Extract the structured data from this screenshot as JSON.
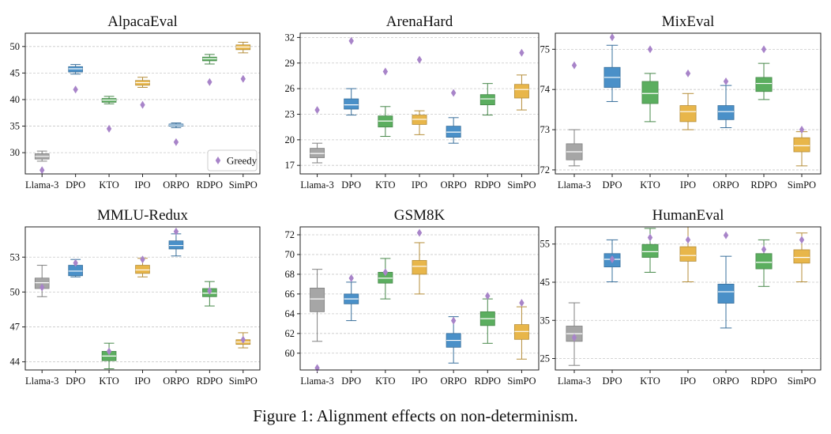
{
  "caption": "Figure 1: Alignment effects on non-determinism.",
  "colors": {
    "Llama-3": "#a6a6a6",
    "DPO": "#4a90c8",
    "KTO": "#5bae5f",
    "IPO": "#e8b64a",
    "ORPO": "#4a90c8",
    "RDPO": "#5bae5f",
    "SimPO": "#e8b64a",
    "greedy": "#a884c9"
  },
  "legend": {
    "label": "Greedy"
  },
  "chart_data": [
    {
      "type": "box",
      "title": "AlpacaEval",
      "categories": [
        "Llama-3",
        "DPO",
        "KTO",
        "IPO",
        "ORPO",
        "RDPO",
        "SimPO"
      ],
      "ylim": [
        26,
        52.5
      ],
      "yticks": [
        "30",
        "35",
        "40",
        "45",
        "50"
      ],
      "boxes": [
        {
          "min": 28.4,
          "q1": 28.8,
          "median": 29.3,
          "q3": 29.8,
          "max": 30.3
        },
        {
          "min": 44.8,
          "q1": 45.2,
          "median": 45.8,
          "q3": 46.2,
          "max": 46.6
        },
        {
          "min": 39.2,
          "q1": 39.5,
          "median": 39.9,
          "q3": 40.2,
          "max": 40.6
        },
        {
          "min": 42.3,
          "q1": 42.7,
          "median": 43.2,
          "q3": 43.6,
          "max": 44.2
        },
        {
          "min": 34.7,
          "q1": 35.0,
          "median": 35.2,
          "q3": 35.4,
          "max": 35.6
        },
        {
          "min": 46.7,
          "q1": 47.3,
          "median": 47.7,
          "q3": 48.0,
          "max": 48.5
        },
        {
          "min": 48.8,
          "q1": 49.4,
          "median": 49.9,
          "q3": 50.3,
          "max": 50.8
        }
      ],
      "greedy": [
        26.7,
        41.9,
        34.5,
        39.0,
        32.0,
        43.3,
        43.9
      ],
      "legend": "bottom-right"
    },
    {
      "type": "box",
      "title": "ArenaHard",
      "categories": [
        "Llama-3",
        "DPO",
        "KTO",
        "IPO",
        "ORPO",
        "RDPO",
        "SimPO"
      ],
      "ylim": [
        16,
        32.5
      ],
      "yticks": [
        "17",
        "20",
        "23",
        "26",
        "29",
        "32"
      ],
      "boxes": [
        {
          "min": 17.3,
          "q1": 17.9,
          "median": 18.4,
          "q3": 19.0,
          "max": 19.6
        },
        {
          "min": 22.9,
          "q1": 23.6,
          "median": 24.1,
          "q3": 24.8,
          "max": 26.0
        },
        {
          "min": 20.4,
          "q1": 21.5,
          "median": 22.2,
          "q3": 22.8,
          "max": 23.9
        },
        {
          "min": 20.6,
          "q1": 21.8,
          "median": 22.4,
          "q3": 22.9,
          "max": 23.4
        },
        {
          "min": 19.6,
          "q1": 20.3,
          "median": 20.9,
          "q3": 21.6,
          "max": 22.6
        },
        {
          "min": 22.9,
          "q1": 24.1,
          "median": 24.8,
          "q3": 25.3,
          "max": 26.6
        },
        {
          "min": 23.5,
          "q1": 24.9,
          "median": 25.9,
          "q3": 26.5,
          "max": 27.6
        }
      ],
      "greedy": [
        23.5,
        31.6,
        28.0,
        29.4,
        25.5,
        null,
        30.2
      ]
    },
    {
      "type": "box",
      "title": "MixEval",
      "categories": [
        "Llama-3",
        "DPO",
        "KTO",
        "IPO",
        "ORPO",
        "RDPO",
        "SimPO"
      ],
      "ylim": [
        71.9,
        75.4
      ],
      "yticks": [
        "72",
        "73",
        "74",
        "75"
      ],
      "boxes": [
        {
          "min": 72.1,
          "q1": 72.25,
          "median": 72.45,
          "q3": 72.65,
          "max": 73.0
        },
        {
          "min": 73.7,
          "q1": 74.05,
          "median": 74.3,
          "q3": 74.55,
          "max": 75.1
        },
        {
          "min": 73.2,
          "q1": 73.65,
          "median": 73.9,
          "q3": 74.2,
          "max": 74.4
        },
        {
          "min": 73.0,
          "q1": 73.2,
          "median": 73.45,
          "q3": 73.6,
          "max": 73.9
        },
        {
          "min": 73.05,
          "q1": 73.25,
          "median": 73.45,
          "q3": 73.6,
          "max": 74.1
        },
        {
          "min": 73.75,
          "q1": 73.95,
          "median": 74.15,
          "q3": 74.3,
          "max": 74.65
        },
        {
          "min": 72.1,
          "q1": 72.45,
          "median": 72.6,
          "q3": 72.8,
          "max": 72.95
        }
      ],
      "greedy": [
        74.6,
        75.3,
        75.0,
        74.4,
        74.2,
        75.0,
        73.0
      ]
    },
    {
      "type": "box",
      "title": "MMLU-Redux",
      "categories": [
        "Llama-3",
        "DPO",
        "KTO",
        "IPO",
        "ORPO",
        "RDPO",
        "SimPO"
      ],
      "ylim": [
        43.3,
        55.6
      ],
      "yticks": [
        "44",
        "47",
        "50",
        "53"
      ],
      "boxes": [
        {
          "min": 49.6,
          "q1": 50.3,
          "median": 50.8,
          "q3": 51.2,
          "max": 52.3
        },
        {
          "min": 51.3,
          "q1": 51.4,
          "median": 51.8,
          "q3": 52.3,
          "max": 52.8
        },
        {
          "min": 43.4,
          "q1": 44.1,
          "median": 44.5,
          "q3": 44.9,
          "max": 45.6
        },
        {
          "min": 51.3,
          "q1": 51.6,
          "median": 51.9,
          "q3": 52.3,
          "max": 52.9
        },
        {
          "min": 53.1,
          "q1": 53.7,
          "median": 54.0,
          "q3": 54.4,
          "max": 55.0
        },
        {
          "min": 48.8,
          "q1": 49.6,
          "median": 49.9,
          "q3": 50.3,
          "max": 50.9
        },
        {
          "min": 45.2,
          "q1": 45.5,
          "median": 45.7,
          "q3": 45.9,
          "max": 46.5
        }
      ],
      "greedy": [
        50.4,
        52.5,
        44.9,
        52.8,
        55.2,
        50.1,
        45.9
      ]
    },
    {
      "type": "box",
      "title": "GSM8K",
      "categories": [
        "Llama-3",
        "DPO",
        "KTO",
        "IPO",
        "ORPO",
        "RDPO",
        "SimPO"
      ],
      "ylim": [
        58.3,
        72.8
      ],
      "yticks": [
        "60",
        "62",
        "64",
        "66",
        "68",
        "70",
        "72"
      ],
      "boxes": [
        {
          "min": 61.2,
          "q1": 64.2,
          "median": 65.5,
          "q3": 66.6,
          "max": 68.5
        },
        {
          "min": 63.3,
          "q1": 65.0,
          "median": 65.5,
          "q3": 66.0,
          "max": 67.2
        },
        {
          "min": 65.5,
          "q1": 67.1,
          "median": 67.6,
          "q3": 68.2,
          "max": 69.6
        },
        {
          "min": 66.0,
          "q1": 68.0,
          "median": 68.8,
          "q3": 69.4,
          "max": 71.2
        },
        {
          "min": 59.0,
          "q1": 60.6,
          "median": 61.3,
          "q3": 62.0,
          "max": 63.7
        },
        {
          "min": 61.0,
          "q1": 62.8,
          "median": 63.5,
          "q3": 64.2,
          "max": 65.5
        },
        {
          "min": 59.4,
          "q1": 61.4,
          "median": 62.2,
          "q3": 62.9,
          "max": 64.7
        }
      ],
      "greedy": [
        58.5,
        67.6,
        68.2,
        72.2,
        63.3,
        65.8,
        65.1
      ]
    },
    {
      "type": "box",
      "title": "HumanEval",
      "categories": [
        "Llama-3",
        "DPO",
        "KTO",
        "IPO",
        "ORPO",
        "RDPO",
        "SimPO"
      ],
      "ylim": [
        22,
        59.5
      ],
      "yticks": [
        "25",
        "35",
        "45",
        "55"
      ],
      "boxes": [
        {
          "min": 23.2,
          "q1": 29.5,
          "median": 31.5,
          "q3": 33.5,
          "max": 39.6
        },
        {
          "min": 45.1,
          "q1": 49.0,
          "median": 51.0,
          "q3": 52.5,
          "max": 56.1
        },
        {
          "min": 47.6,
          "q1": 51.5,
          "median": 53.0,
          "q3": 54.9,
          "max": 59.1
        },
        {
          "min": 45.1,
          "q1": 50.5,
          "median": 52.0,
          "q3": 54.3,
          "max": 59.5
        },
        {
          "min": 33.0,
          "q1": 39.5,
          "median": 42.5,
          "q3": 44.5,
          "max": 51.8
        },
        {
          "min": 43.9,
          "q1": 48.5,
          "median": 50.2,
          "q3": 52.5,
          "max": 56.1
        },
        {
          "min": 45.1,
          "q1": 50.0,
          "median": 51.5,
          "q3": 53.5,
          "max": 57.9
        }
      ],
      "greedy": [
        30.5,
        51.0,
        56.7,
        56.1,
        57.3,
        53.6,
        56.1
      ]
    }
  ]
}
